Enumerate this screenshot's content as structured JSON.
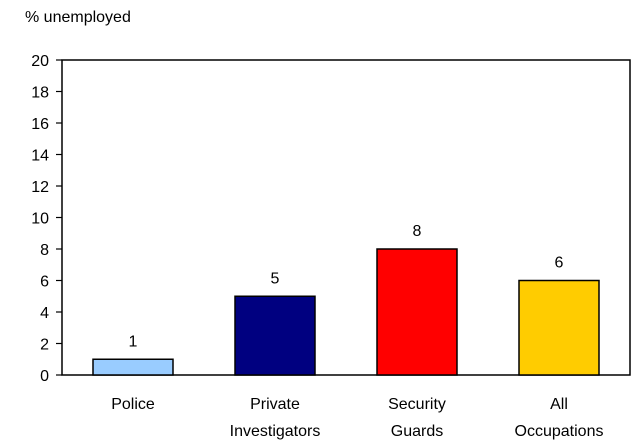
{
  "chart_data": {
    "type": "bar",
    "title": "",
    "ylabel": "% unemployed",
    "xlabel": "",
    "ylim": [
      0,
      20
    ],
    "y_ticks": [
      0,
      2,
      4,
      6,
      8,
      10,
      12,
      14,
      16,
      18,
      20
    ],
    "grid": false,
    "legend": "none",
    "categories": [
      [
        "Police"
      ],
      [
        "Private",
        "Investigators"
      ],
      [
        "Security",
        "Guards"
      ],
      [
        "All",
        "Occupations"
      ]
    ],
    "values": [
      1,
      5,
      8,
      6
    ],
    "data_labels": [
      "1",
      "5",
      "8",
      "6"
    ],
    "colors": [
      "#99CCFF",
      "#000080",
      "#FF0000",
      "#FFCC00"
    ],
    "frame_color": "#000000"
  }
}
